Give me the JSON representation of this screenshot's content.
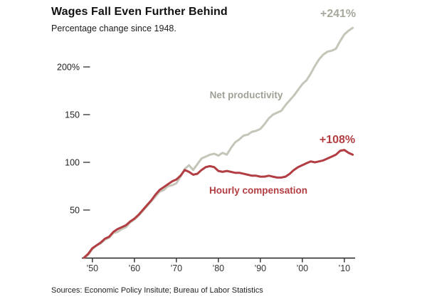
{
  "chart_data": {
    "type": "line",
    "title": "Wages Fall Even Further Behind",
    "subtitle": "Percentage change since 1948.",
    "source_note": "Sources: Economic Policy Insitute; Bureau of Labor Statistics",
    "grid": false,
    "legend": "inline-labels",
    "xlim": [
      1948,
      2012.5
    ],
    "ylim": [
      0,
      250
    ],
    "x": [
      1948,
      1949,
      1950,
      1951,
      1952,
      1953,
      1954,
      1955,
      1956,
      1957,
      1958,
      1959,
      1960,
      1961,
      1962,
      1963,
      1964,
      1965,
      1966,
      1967,
      1968,
      1969,
      1970,
      1971,
      1972,
      1973,
      1974,
      1975,
      1976,
      1977,
      1978,
      1979,
      1980,
      1981,
      1982,
      1983,
      1984,
      1985,
      1986,
      1987,
      1988,
      1989,
      1990,
      1991,
      1992,
      1993,
      1994,
      1995,
      1996,
      1997,
      1998,
      1999,
      2000,
      2001,
      2002,
      2003,
      2004,
      2005,
      2006,
      2007,
      2008,
      2009,
      2010,
      2011,
      2012
    ],
    "series": [
      {
        "name": "Net productivity",
        "end_label": "+241%",
        "color": "#c6c5b9",
        "label_color": "#a1a096",
        "values": [
          0,
          3,
          9,
          13,
          15,
          19,
          21,
          26,
          27,
          30,
          32,
          37,
          40,
          44,
          49,
          54,
          59,
          64,
          69,
          71,
          75,
          76,
          78,
          85,
          93,
          97,
          92,
          98,
          104,
          106,
          108,
          109,
          107,
          110,
          108,
          115,
          121,
          124,
          128,
          129,
          132,
          133,
          135,
          140,
          146,
          150,
          152,
          154,
          160,
          165,
          170,
          176,
          182,
          186,
          193,
          201,
          208,
          213,
          216,
          217,
          219,
          227,
          234,
          238,
          241
        ]
      },
      {
        "name": "Hourly compensation",
        "end_label": "+108%",
        "color": "#b23e43",
        "label_color": "#b23e43",
        "values": [
          0,
          4,
          10,
          13,
          16,
          20,
          22,
          27,
          30,
          32,
          34,
          38,
          41,
          45,
          50,
          55,
          60,
          66,
          71,
          74,
          77,
          80,
          82,
          86,
          92,
          90,
          87,
          88,
          92,
          95,
          96,
          95,
          91,
          90,
          91,
          90,
          89,
          89,
          88,
          87,
          86,
          86,
          85,
          85,
          86,
          85,
          84,
          84,
          85,
          88,
          92,
          95,
          97,
          99,
          101,
          100,
          101,
          102,
          104,
          106,
          108,
          112,
          113,
          110,
          108
        ]
      }
    ],
    "x_ticks": {
      "values": [
        1950,
        1960,
        1970,
        1980,
        1990,
        2000,
        2010
      ],
      "labels": [
        "’50",
        "’60",
        "’70",
        "’80",
        "’90",
        "’00",
        "’10"
      ]
    },
    "y_ticks": {
      "values": [
        50,
        100,
        150,
        200
      ],
      "labels": [
        "50",
        "100",
        "150",
        "200%"
      ]
    }
  },
  "colors": {
    "productivity_line": "#c6c5b9",
    "compensation_line": "#b23e43",
    "axis": "#222222",
    "tick_text": "#333333"
  }
}
